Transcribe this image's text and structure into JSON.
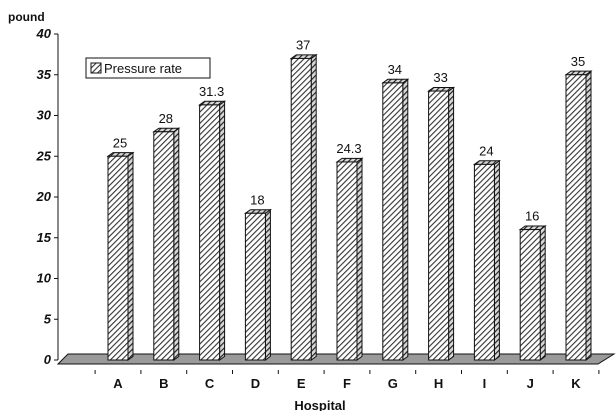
{
  "chart_data": {
    "type": "bar",
    "title": "",
    "xlabel": "Hospital",
    "ylabel": "pound",
    "categories": [
      "A",
      "B",
      "C",
      "D",
      "E",
      "F",
      "G",
      "H",
      "I",
      "J",
      "K"
    ],
    "series": [
      {
        "name": "Pressure rate",
        "values": [
          25,
          28,
          31.3,
          18,
          37,
          24.3,
          34,
          33,
          24,
          16,
          35
        ],
        "labels": [
          "25",
          "28",
          "31.3",
          "18",
          "37",
          "24.3",
          "34",
          "33",
          "24",
          "16",
          "35"
        ]
      }
    ],
    "yticks": [
      0,
      5,
      10,
      15,
      20,
      25,
      30,
      35,
      40
    ],
    "ylim": [
      0,
      40
    ],
    "grid": false,
    "legend": "top-left",
    "style": "3d-hatched",
    "colors": {
      "bar_stroke": "#111111",
      "hatch": "#333333",
      "floor": "#9a9a9a"
    }
  }
}
